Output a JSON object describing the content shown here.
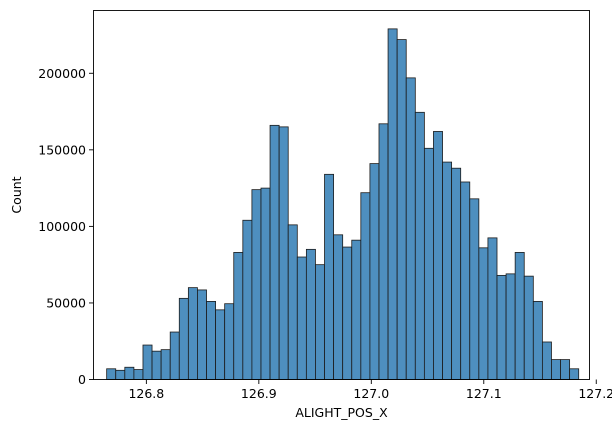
{
  "chart_data": {
    "type": "bar",
    "title": "",
    "xlabel": "ALIGHT_POS_X",
    "ylabel": "Count",
    "xlim": [
      126.753,
      127.194
    ],
    "ylim": [
      0,
      241000
    ],
    "xticks": [
      126.8,
      126.9,
      127.0,
      127.1,
      127.2
    ],
    "xtick_labels": [
      "126.8",
      "126.9",
      "127.0",
      "127.1",
      "127.2"
    ],
    "yticks": [
      0,
      50000,
      100000,
      150000,
      200000
    ],
    "ytick_labels": [
      "0",
      "50000",
      "100000",
      "150000",
      "200000"
    ],
    "grid": false,
    "bar_color": "#4e8fbf",
    "edge_color": "#1b1b1b",
    "bin_start": 126.7647,
    "bin_end": 127.1844,
    "counts": [
      7000,
      6000,
      8000,
      6500,
      22500,
      18500,
      19500,
      31000,
      53000,
      60000,
      58500,
      51000,
      45500,
      49500,
      83000,
      104000,
      124000,
      125000,
      166000,
      165000,
      101000,
      80000,
      85000,
      75000,
      134000,
      94500,
      86500,
      91000,
      122000,
      141000,
      167000,
      229000,
      222000,
      197000,
      174500,
      151000,
      162000,
      142000,
      138000,
      129000,
      118000,
      86000,
      92500,
      68000,
      69000,
      83000,
      67500,
      51000,
      24500,
      13000,
      13000,
      7000
    ]
  }
}
